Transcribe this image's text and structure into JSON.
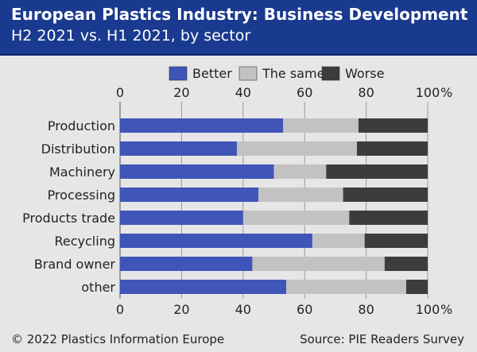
{
  "header": {
    "title": "European Plastics Industry: Business Development",
    "subtitle": "H2 2021 vs. H1 2021, by sector"
  },
  "footer": {
    "copyright": "© 2022 Plastics Information Europe",
    "source": "Source: PIE Readers Survey"
  },
  "colors": {
    "header_bg": "#1a3a8f",
    "better": "#3f55b8",
    "same": "#c2c2c2",
    "worse": "#3c3c3c"
  },
  "chart_data": {
    "type": "bar",
    "orientation": "horizontal",
    "stacked": true,
    "title": "European Plastics Industry: Business Development",
    "subtitle": "H2 2021 vs. H1 2021, by sector",
    "categories": [
      "Production",
      "Distribution",
      "Machinery",
      "Processing",
      "Products trade",
      "Recycling",
      "Brand owner",
      "other"
    ],
    "series": [
      {
        "name": "Better",
        "color": "#3f55b8",
        "values": [
          53,
          38,
          50,
          45,
          40,
          62.5,
          43,
          54
        ]
      },
      {
        "name": "The same",
        "color": "#c2c2c2",
        "values": [
          24.5,
          39,
          17,
          27.5,
          34.5,
          17,
          43,
          39
        ]
      },
      {
        "name": "Worse",
        "color": "#3c3c3c",
        "values": [
          22.5,
          23,
          33,
          27.5,
          25.5,
          20.5,
          14,
          7
        ]
      }
    ],
    "xlim": [
      0,
      100
    ],
    "xticks": [
      "0",
      "20",
      "40",
      "60",
      "80",
      "100"
    ],
    "xunit": "%",
    "grid": true,
    "legend_position": "top"
  }
}
